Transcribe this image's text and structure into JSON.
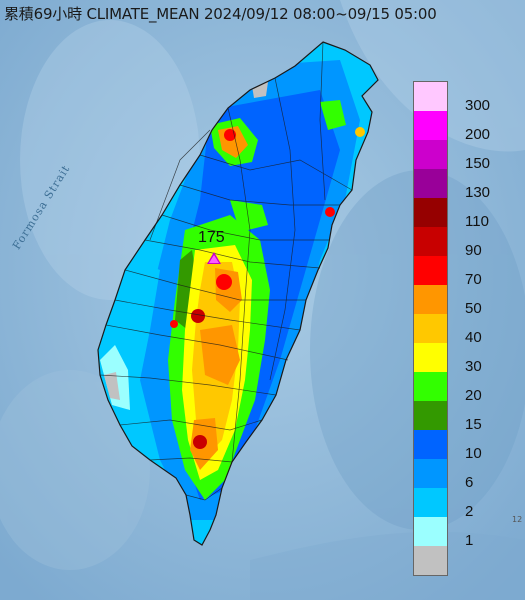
{
  "title": "累積69小時 CLIMATE_MEAN 2024/09/12 08:00~09/15 05:00",
  "map_label": "Formosa Strait",
  "peak": {
    "value": "175",
    "marker": "triangle-marker"
  },
  "edge_text": "12",
  "legend": {
    "items": [
      {
        "label": "300",
        "color": "#ffc8ff"
      },
      {
        "label": "200",
        "color": "#ff00ff"
      },
      {
        "label": "150",
        "color": "#cc00cc"
      },
      {
        "label": "130",
        "color": "#990099"
      },
      {
        "label": "110",
        "color": "#960000"
      },
      {
        "label": "90",
        "color": "#c80000"
      },
      {
        "label": "70",
        "color": "#ff0000"
      },
      {
        "label": "50",
        "color": "#ff9600"
      },
      {
        "label": "40",
        "color": "#ffc800"
      },
      {
        "label": "30",
        "color": "#ffff00"
      },
      {
        "label": "20",
        "color": "#32ff00"
      },
      {
        "label": "15",
        "color": "#339900"
      },
      {
        "label": "10",
        "color": "#0064ff"
      },
      {
        "label": "6",
        "color": "#0096ff"
      },
      {
        "label": "2",
        "color": "#00c8ff"
      },
      {
        "label": "1",
        "color": "#9bffff"
      },
      {
        "label": "",
        "color": "#c1c1c1"
      }
    ]
  },
  "colors": {
    "sea": "#8fb9d8",
    "mountains": "#9fc3de",
    "outline": "#1a1a1a"
  }
}
